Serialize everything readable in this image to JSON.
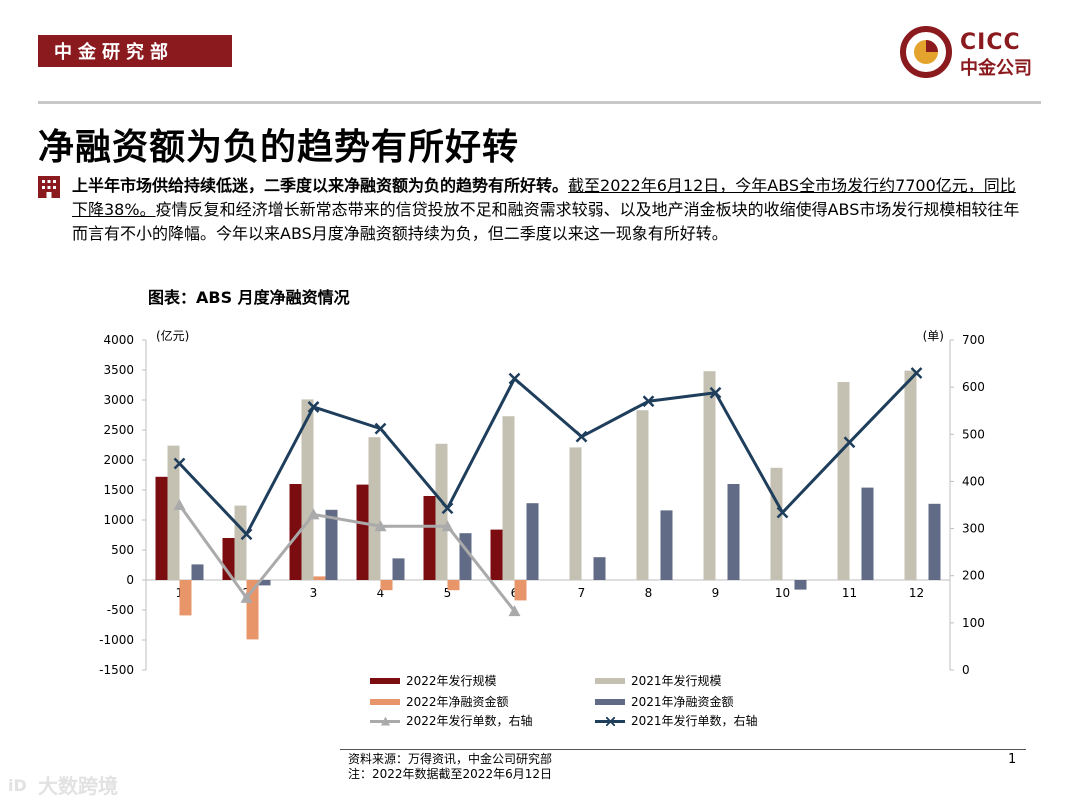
{
  "header": {
    "dept_label": "中金研究部",
    "logo_en": "CICC",
    "logo_cn": "中金公司",
    "brand_color": "#8b1a1f"
  },
  "title": "净融资额为负的趋势有所好转",
  "summary": {
    "bold_part": "上半年市场供给持续低迷，二季度以来净融资额为负的趋势有所好转。",
    "underlined_part": "截至2022年6月12日，今年ABS全市场发行约7700亿元，同比下降38%。",
    "rest": "疫情反复和经济增长新常态带来的信贷投放不足和融资需求较弱、以及地产消金板块的收缩使得ABS市场发行规模相较往年而言有不小的降幅。今年以来ABS月度净融资额持续为负，但二季度以来这一现象有所好转。"
  },
  "chart_heading": "图表：ABS 月度净融资情况",
  "chart_data": {
    "type": "bar",
    "categories": [
      "1",
      "2",
      "3",
      "4",
      "5",
      "6",
      "7",
      "8",
      "9",
      "10",
      "11",
      "12"
    ],
    "left_axis": {
      "unit_label": "(亿元)",
      "ylim": [
        -1500,
        4000
      ],
      "ticks": [
        4000,
        3500,
        3000,
        2500,
        2000,
        1500,
        1000,
        500,
        0,
        -500,
        -1000,
        -1500
      ]
    },
    "right_axis": {
      "unit_label": "(单)",
      "ylim": [
        0,
        700
      ],
      "ticks": [
        700,
        600,
        500,
        400,
        300,
        200,
        100,
        0
      ]
    },
    "series": [
      {
        "name": "2022年发行规模",
        "kind": "bar",
        "axis": "left",
        "color": "#7b0c10",
        "values": [
          1720,
          700,
          1600,
          1590,
          1400,
          840,
          null,
          null,
          null,
          null,
          null,
          null
        ]
      },
      {
        "name": "2021年发行规模",
        "kind": "bar",
        "axis": "left",
        "color": "#c4c1b2",
        "values": [
          2240,
          1240,
          3010,
          2380,
          2270,
          2730,
          2210,
          2830,
          3480,
          1870,
          3300,
          3490
        ]
      },
      {
        "name": "2022年净融资金额",
        "kind": "bar",
        "axis": "left",
        "color": "#e9956a",
        "values": [
          -590,
          -990,
          60,
          -170,
          -170,
          -340,
          null,
          null,
          null,
          null,
          null,
          null
        ]
      },
      {
        "name": "2021年净融资金额",
        "kind": "bar",
        "axis": "left",
        "color": "#626b86",
        "values": [
          260,
          -90,
          1170,
          360,
          780,
          1280,
          380,
          1160,
          1600,
          -160,
          1540,
          1270
        ]
      },
      {
        "name": "2022年发行单数，右轴",
        "kind": "line",
        "axis": "right",
        "color": "#aaaaaa",
        "marker": "triangle",
        "values": [
          350,
          153,
          330,
          305,
          305,
          125,
          null,
          null,
          null,
          null,
          null,
          null
        ]
      },
      {
        "name": "2021年发行单数，右轴",
        "kind": "line",
        "axis": "right",
        "color": "#1e3e5c",
        "marker": "x",
        "values": [
          438,
          288,
          558,
          512,
          343,
          618,
          495,
          570,
          588,
          334,
          483,
          630
        ]
      }
    ],
    "legend_position": "bottom",
    "grid": false
  },
  "footer": {
    "source": "资料来源：万得资讯，中金公司研究部",
    "note": "注：2022年数据截至2022年6月12日",
    "page_number": "1"
  }
}
